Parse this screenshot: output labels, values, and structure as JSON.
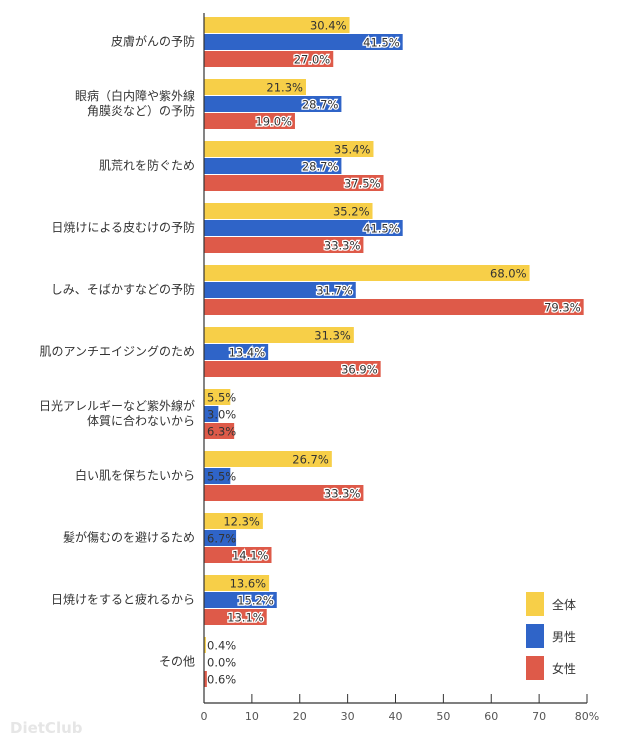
{
  "chart_data": {
    "type": "bar",
    "orientation": "horizontal",
    "categories": [
      [
        "皮膚がんの予防"
      ],
      [
        "眼病（白内障や紫外線",
        "角膜炎など）の予防"
      ],
      [
        "肌荒れを防ぐため"
      ],
      [
        "日焼けによる皮むけの予防"
      ],
      [
        "しみ、そばかすなどの予防"
      ],
      [
        "肌のアンチエイジングのため"
      ],
      [
        "日光アレルギーなど紫外線が",
        "体質に合わないから"
      ],
      [
        "白い肌を保ちたいから"
      ],
      [
        "髪が傷むのを避けるため"
      ],
      [
        "日焼けをすると疲れるから"
      ],
      [
        "その他"
      ]
    ],
    "series": [
      {
        "name": "全体",
        "color": "#f7cf48",
        "values": [
          30.4,
          21.3,
          35.4,
          35.2,
          68.0,
          31.3,
          5.5,
          26.7,
          12.3,
          13.6,
          0.4
        ]
      },
      {
        "name": "男性",
        "color": "#2f64c8",
        "values": [
          41.5,
          28.7,
          28.7,
          41.5,
          31.7,
          13.4,
          3.0,
          5.5,
          6.7,
          15.2,
          0.0
        ]
      },
      {
        "name": "女性",
        "color": "#de5a49",
        "values": [
          27.0,
          19.0,
          37.5,
          33.3,
          79.3,
          36.9,
          6.3,
          33.3,
          14.1,
          13.1,
          0.6
        ]
      }
    ],
    "xlim": [
      0,
      80
    ],
    "xticks": [
      "0",
      "10",
      "20",
      "30",
      "40",
      "50",
      "60",
      "70",
      "80%"
    ],
    "legend_position": "bottom-right",
    "grid": false
  },
  "watermark": "DietClub"
}
